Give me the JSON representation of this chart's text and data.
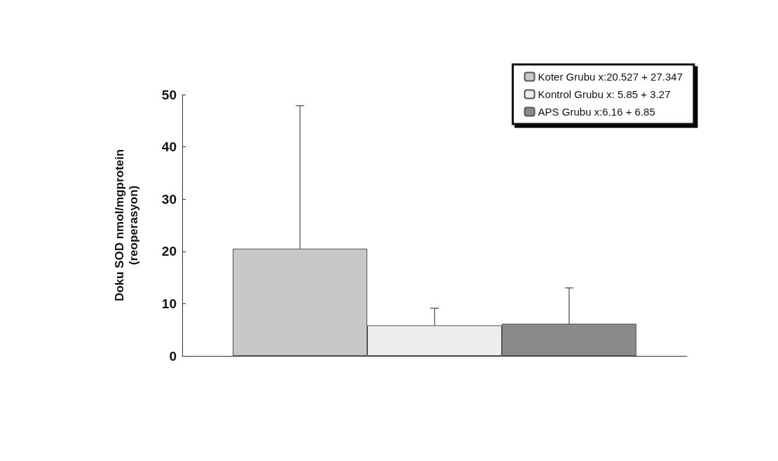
{
  "chart_data": {
    "type": "bar",
    "ylabel": "Doku SOD nmol/mgprotein\n(reoperasyon)",
    "categories": [
      null
    ],
    "series": [
      {
        "name": "Koter Grubu x:20.527 + 27.347",
        "color": "#c8c8c8",
        "values": [
          20.527
        ],
        "errors": [
          [
            20.527,
            47.874
          ]
        ]
      },
      {
        "name": "Kontrol Grubu x: 5.85 + 3.27",
        "color": "#eeeeee",
        "values": [
          5.85
        ],
        "errors": [
          [
            5.85,
            9.12
          ]
        ]
      },
      {
        "name": "APS Grubu x:6.16 + 6.85",
        "color": "#8a8a8a",
        "values": [
          6.16
        ],
        "errors": [
          [
            6.16,
            13.01
          ]
        ]
      }
    ],
    "ylim": [
      0,
      50
    ],
    "yticks": [
      0,
      10,
      20,
      30,
      40,
      50
    ],
    "grid": false,
    "legend": "top right"
  }
}
